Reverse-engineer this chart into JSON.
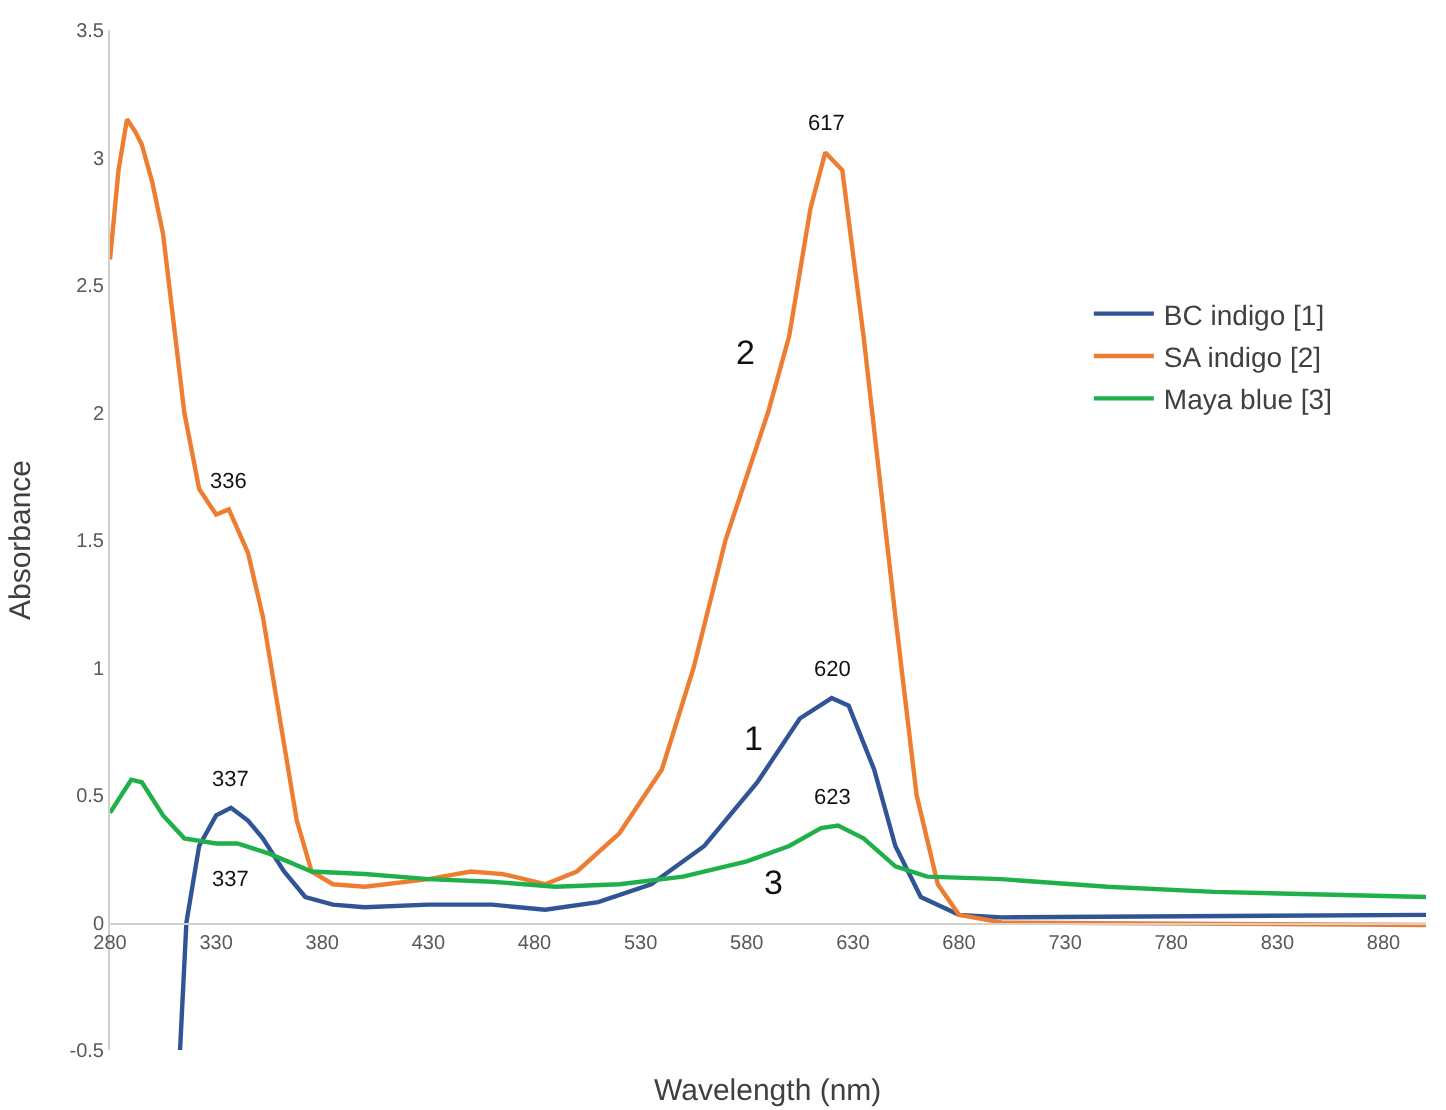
{
  "chart_data": {
    "type": "line",
    "xlabel": "Wavelength (nm)",
    "ylabel": "Absorbance",
    "xlim": [
      280,
      900
    ],
    "ylim": [
      -0.5,
      3.5
    ],
    "xticks": [
      280,
      330,
      380,
      430,
      480,
      530,
      580,
      630,
      680,
      730,
      780,
      830,
      880
    ],
    "yticks": [
      -0.5,
      0,
      0.5,
      1,
      1.5,
      2,
      2.5,
      3,
      3.5
    ],
    "legend": "right",
    "marker": "none",
    "line_style": "solid",
    "series": [
      {
        "name": "BC indigo [1]",
        "color": "#2f5597",
        "x": [
          313,
          316,
          322,
          330,
          337,
          345,
          352,
          362,
          372,
          385,
          400,
          430,
          460,
          485,
          510,
          535,
          560,
          585,
          605,
          620,
          628,
          640,
          650,
          662,
          680,
          700,
          900
        ],
        "values": [
          -0.5,
          0,
          0.3,
          0.42,
          0.45,
          0.4,
          0.33,
          0.2,
          0.1,
          0.07,
          0.06,
          0.07,
          0.07,
          0.05,
          0.08,
          0.15,
          0.3,
          0.55,
          0.8,
          0.88,
          0.85,
          0.6,
          0.3,
          0.1,
          0.03,
          0.02,
          0.03
        ]
      },
      {
        "name": "SA indigo [2]",
        "color": "#ed7d31",
        "x": [
          280,
          284,
          288,
          292,
          295,
          300,
          305,
          310,
          315,
          322,
          330,
          336,
          345,
          352,
          360,
          368,
          375,
          385,
          400,
          430,
          450,
          465,
          485,
          500,
          520,
          540,
          555,
          570,
          590,
          600,
          610,
          617,
          625,
          635,
          650,
          660,
          670,
          680,
          700,
          900
        ],
        "values": [
          2.6,
          2.95,
          3.15,
          3.1,
          3.05,
          2.9,
          2.7,
          2.35,
          2.0,
          1.7,
          1.6,
          1.62,
          1.45,
          1.2,
          0.8,
          0.4,
          0.2,
          0.15,
          0.14,
          0.17,
          0.2,
          0.19,
          0.15,
          0.2,
          0.35,
          0.6,
          1.0,
          1.5,
          2.0,
          2.3,
          2.8,
          3.02,
          2.95,
          2.3,
          1.2,
          0.5,
          0.15,
          0.03,
          0,
          -0.01
        ]
      },
      {
        "name": "Maya blue [3]",
        "color": "#1fb04b",
        "x": [
          280,
          290,
          295,
          305,
          315,
          330,
          340,
          355,
          375,
          400,
          430,
          460,
          490,
          520,
          550,
          580,
          600,
          615,
          623,
          635,
          650,
          665,
          700,
          750,
          800,
          900
        ],
        "values": [
          0.43,
          0.56,
          0.55,
          0.42,
          0.33,
          0.31,
          0.31,
          0.27,
          0.2,
          0.19,
          0.17,
          0.16,
          0.14,
          0.15,
          0.18,
          0.24,
          0.3,
          0.37,
          0.38,
          0.33,
          0.22,
          0.18,
          0.17,
          0.14,
          0.12,
          0.1
        ]
      }
    ],
    "annotations": [
      {
        "text": "617",
        "x": 617,
        "y": 3.02
      },
      {
        "text": "336",
        "x": 336,
        "y": 1.62
      },
      {
        "text": "337",
        "x": 337,
        "y": 0.45
      },
      {
        "text": "337",
        "x": 340,
        "y": 0.31
      },
      {
        "text": "620",
        "x": 620,
        "y": 0.88
      },
      {
        "text": "623",
        "x": 623,
        "y": 0.38
      },
      {
        "text": "2",
        "x": 590,
        "y": 2.0
      },
      {
        "text": "1",
        "x": 585,
        "y": 0.55
      },
      {
        "text": "3",
        "x": 600,
        "y": 0.3
      }
    ]
  }
}
